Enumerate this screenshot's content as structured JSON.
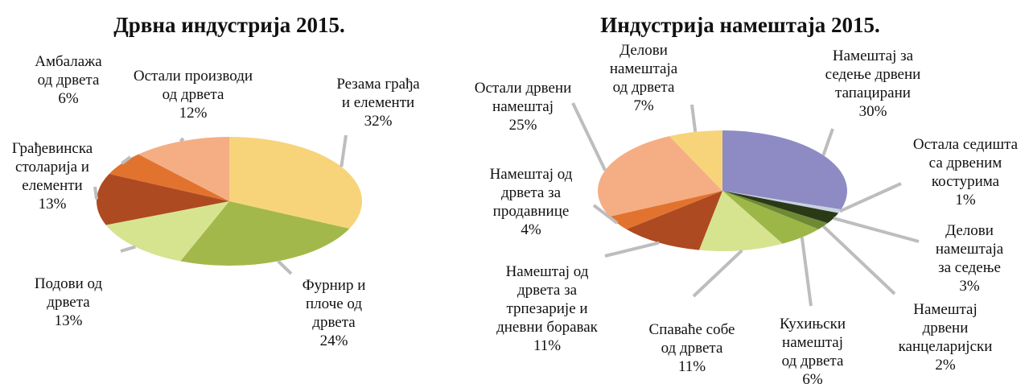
{
  "chart_data": [
    {
      "type": "pie",
      "title": "Дрвна индустрија 2015.",
      "categories": [
        "Резама грађа\nи елементи",
        "Фурнир и\nплоче од\nдрвета",
        "Подови од\nдрвета",
        "Грађевинска\nстоларија и\nелементи",
        "Амбалажа\nод дрвета",
        "Остали производи\nод дрвета"
      ],
      "values": [
        32,
        24,
        13,
        13,
        6,
        12
      ],
      "value_labels": [
        "32%",
        "24%",
        "13%",
        "13%",
        "6%",
        "12%"
      ],
      "colors": [
        "#f7d47a",
        "#a3b84a",
        "#d6e48f",
        "#ae4a21",
        "#e2732f",
        "#f5ae84"
      ]
    },
    {
      "type": "pie",
      "title": "Индустрија намештаја 2015.",
      "categories": [
        "Намештај за\nседење дрвени\nтапацирани",
        "Остала седишта\nса дрвеним\nкостурима",
        "Делови\nнамештаја\nза седење",
        "Намештај\nдрвени\nканцеларијски",
        "Кухињски\nнамештај\nод дрвета",
        "Спаваће собе\nод дрвета",
        "Намештај од\nдрвета за\nтрпезарије и\nдневни боравак",
        "Намештај од\nдрвета за\nпродавнице",
        "Остали дрвени\nнамештај",
        "Делови\nнамештаја\nод дрвета"
      ],
      "values": [
        30,
        1,
        3,
        2,
        6,
        11,
        11,
        4,
        25,
        7
      ],
      "value_labels": [
        "30%",
        "1%",
        "3%",
        "2%",
        "6%",
        "11%",
        "11%",
        "4%",
        "25%",
        "7%"
      ],
      "colors": [
        "#8e8bc4",
        "#c8d2e2",
        "#2b3a16",
        "#6f8a34",
        "#9db648",
        "#d6e48f",
        "#ae4a21",
        "#e2732f",
        "#f5ae84",
        "#f7d47a"
      ]
    }
  ]
}
